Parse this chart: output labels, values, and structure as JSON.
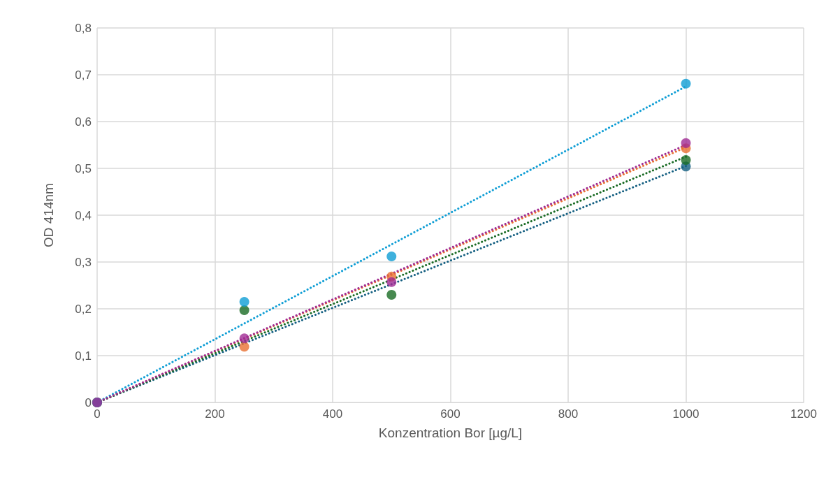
{
  "chart_data": {
    "type": "scatter",
    "xlabel": "Konzentration Bor [µg/L]",
    "ylabel": "OD 414nm",
    "xlim": [
      0,
      1200
    ],
    "xticks": [
      0,
      200,
      400,
      600,
      800,
      1000,
      1200
    ],
    "ylim": [
      0,
      0.8
    ],
    "yticks": [
      0,
      {
        "value": 0.1,
        "label": "0,1"
      },
      {
        "value": 0.2,
        "label": "0,2"
      },
      {
        "value": 0.3,
        "label": "0,3"
      },
      {
        "value": 0.4,
        "label": "0,4"
      },
      {
        "value": 0.5,
        "label": "0,5"
      },
      {
        "value": 0.6,
        "label": "0,6"
      },
      {
        "value": 0.7,
        "label": "0,7"
      },
      {
        "value": 0.8,
        "label": "0,8"
      }
    ],
    "grid": true,
    "marker": "circle",
    "series": [
      {
        "type": "line",
        "line_style": "dotted",
        "marker": "none",
        "color": "#156082",
        "x": [
          0,
          1000
        ],
        "values": [
          0,
          0.505
        ]
      },
      {
        "type": "line",
        "line_style": "dotted",
        "marker": "none",
        "color": "#e97132",
        "x": [
          0,
          1000
        ],
        "values": [
          0,
          0.545
        ]
      },
      {
        "type": "line",
        "line_style": "dotted",
        "marker": "none",
        "color": "#196b24",
        "x": [
          0,
          1000
        ],
        "values": [
          0,
          0.525
        ]
      },
      {
        "type": "line",
        "line_style": "dotted",
        "marker": "none",
        "color": "#0f9ed5",
        "x": [
          0,
          1000
        ],
        "values": [
          0,
          0.675
        ]
      },
      {
        "type": "line",
        "line_style": "dotted",
        "marker": "none",
        "color": "#a02b93",
        "x": [
          0,
          1000
        ],
        "values": [
          0,
          0.55
        ]
      },
      {
        "color": "#156082",
        "x": [
          0,
          250,
          500,
          1000
        ],
        "values": [
          0,
          null,
          null,
          0.504
        ]
      },
      {
        "color": "#e97132",
        "x": [
          0,
          250,
          500,
          1000
        ],
        "values": [
          0,
          0.119,
          0.269,
          0.543
        ]
      },
      {
        "color": "#196b24",
        "x": [
          0,
          250,
          500,
          1000
        ],
        "values": [
          0,
          0.197,
          0.23,
          0.518
        ]
      },
      {
        "color": "#0f9ed5",
        "x": [
          0,
          250,
          500,
          1000
        ],
        "values": [
          0,
          0.215,
          0.312,
          0.681
        ]
      },
      {
        "color": "#a02b93",
        "x": [
          0,
          250,
          500,
          1000
        ],
        "values": [
          0,
          0.137,
          0.257,
          0.554
        ]
      }
    ]
  }
}
